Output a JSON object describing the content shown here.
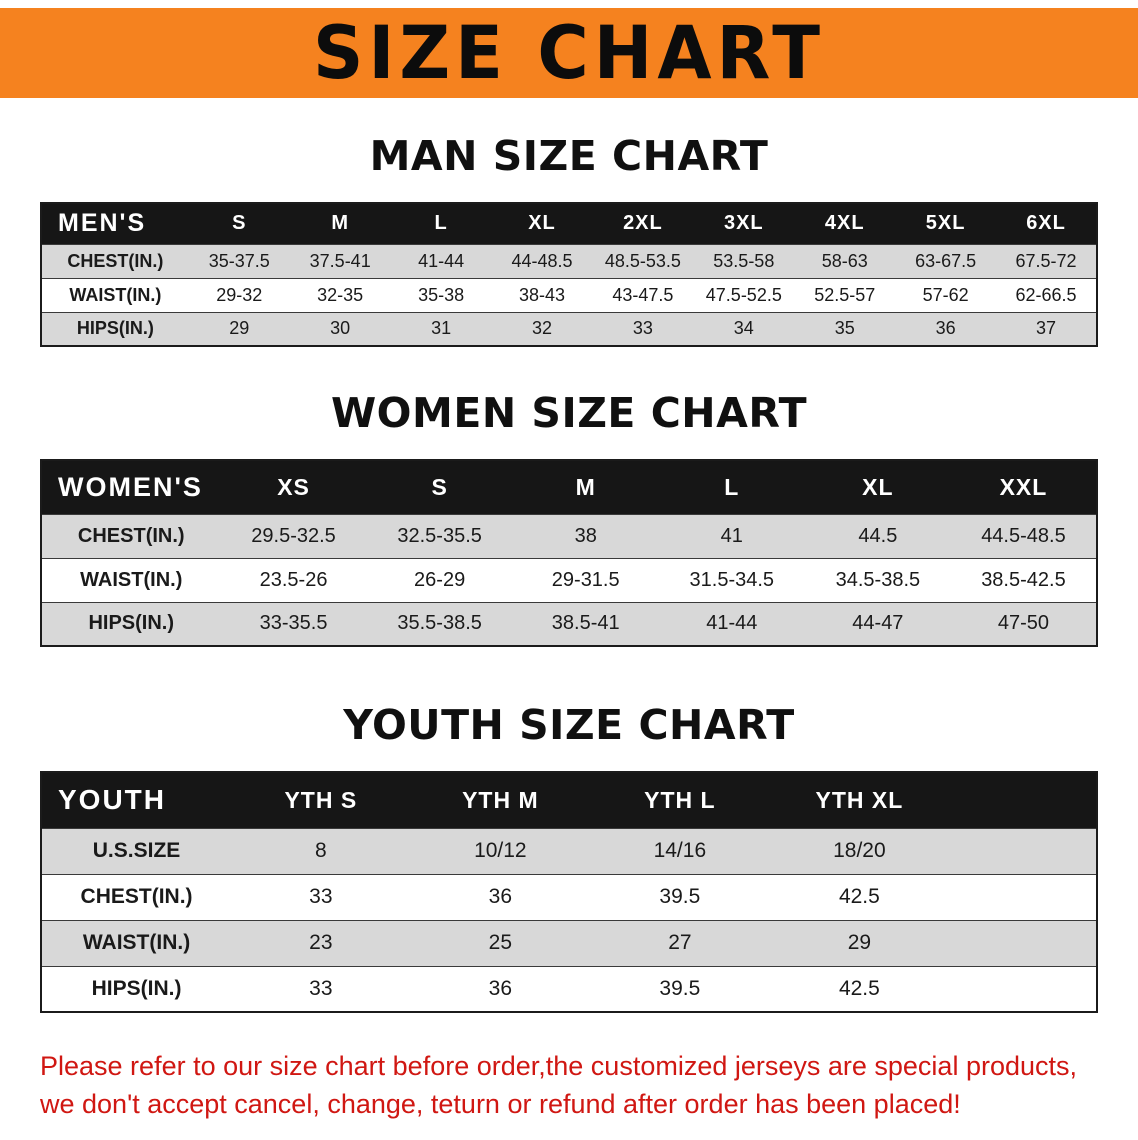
{
  "banner": {
    "title": "SIZE CHART"
  },
  "colors": {
    "banner_bg": "#F5821F",
    "header_bg": "#161616",
    "stripe": "#D8D8D8",
    "disclaimer_red": "#D01712"
  },
  "sections": [
    {
      "heading": "MAN SIZE CHART",
      "table": {
        "header": [
          "MEN'S",
          "S",
          "M",
          "L",
          "XL",
          "2XL",
          "3XL",
          "4XL",
          "5XL",
          "6XL"
        ],
        "rows": [
          [
            "CHEST(IN.)",
            "35-37.5",
            "37.5-41",
            "41-44",
            "44-48.5",
            "48.5-53.5",
            "53.5-58",
            "58-63",
            "63-67.5",
            "67.5-72"
          ],
          [
            "WAIST(IN.)",
            "29-32",
            "32-35",
            "35-38",
            "38-43",
            "43-47.5",
            "47.5-52.5",
            "52.5-57",
            "57-62",
            "62-66.5"
          ],
          [
            "HIPS(IN.)",
            "29",
            "30",
            "31",
            "32",
            "33",
            "34",
            "35",
            "36",
            "37"
          ]
        ]
      }
    },
    {
      "heading": "WOMEN SIZE CHART",
      "table": {
        "header": [
          "WOMEN'S",
          "XS",
          "S",
          "M",
          "L",
          "XL",
          "XXL"
        ],
        "rows": [
          [
            "CHEST(IN.)",
            "29.5-32.5",
            "32.5-35.5",
            "38",
            "41",
            "44.5",
            "44.5-48.5"
          ],
          [
            "WAIST(IN.)",
            "23.5-26",
            "26-29",
            "29-31.5",
            "31.5-34.5",
            "34.5-38.5",
            "38.5-42.5"
          ],
          [
            "HIPS(IN.)",
            "33-35.5",
            "35.5-38.5",
            "38.5-41",
            "41-44",
            "44-47",
            "47-50"
          ]
        ]
      }
    },
    {
      "heading": "YOUTH SIZE CHART",
      "table": {
        "header": [
          "YOUTH",
          "YTH S",
          "YTH M",
          "YTH L",
          "YTH XL"
        ],
        "rows": [
          [
            "U.S.SIZE",
            "8",
            "10/12",
            "14/16",
            "18/20"
          ],
          [
            "CHEST(IN.)",
            "33",
            "36",
            "39.5",
            "42.5"
          ],
          [
            "WAIST(IN.)",
            "23",
            "25",
            "27",
            "29"
          ],
          [
            "HIPS(IN.)",
            "33",
            "36",
            "39.5",
            "42.5"
          ]
        ]
      }
    }
  ],
  "disclaimer": {
    "line1": "Please refer to our size chart before order,the customized jerseys are special products,",
    "line2": "we don't accept cancel, change, teturn or refund after order has been placed!"
  }
}
